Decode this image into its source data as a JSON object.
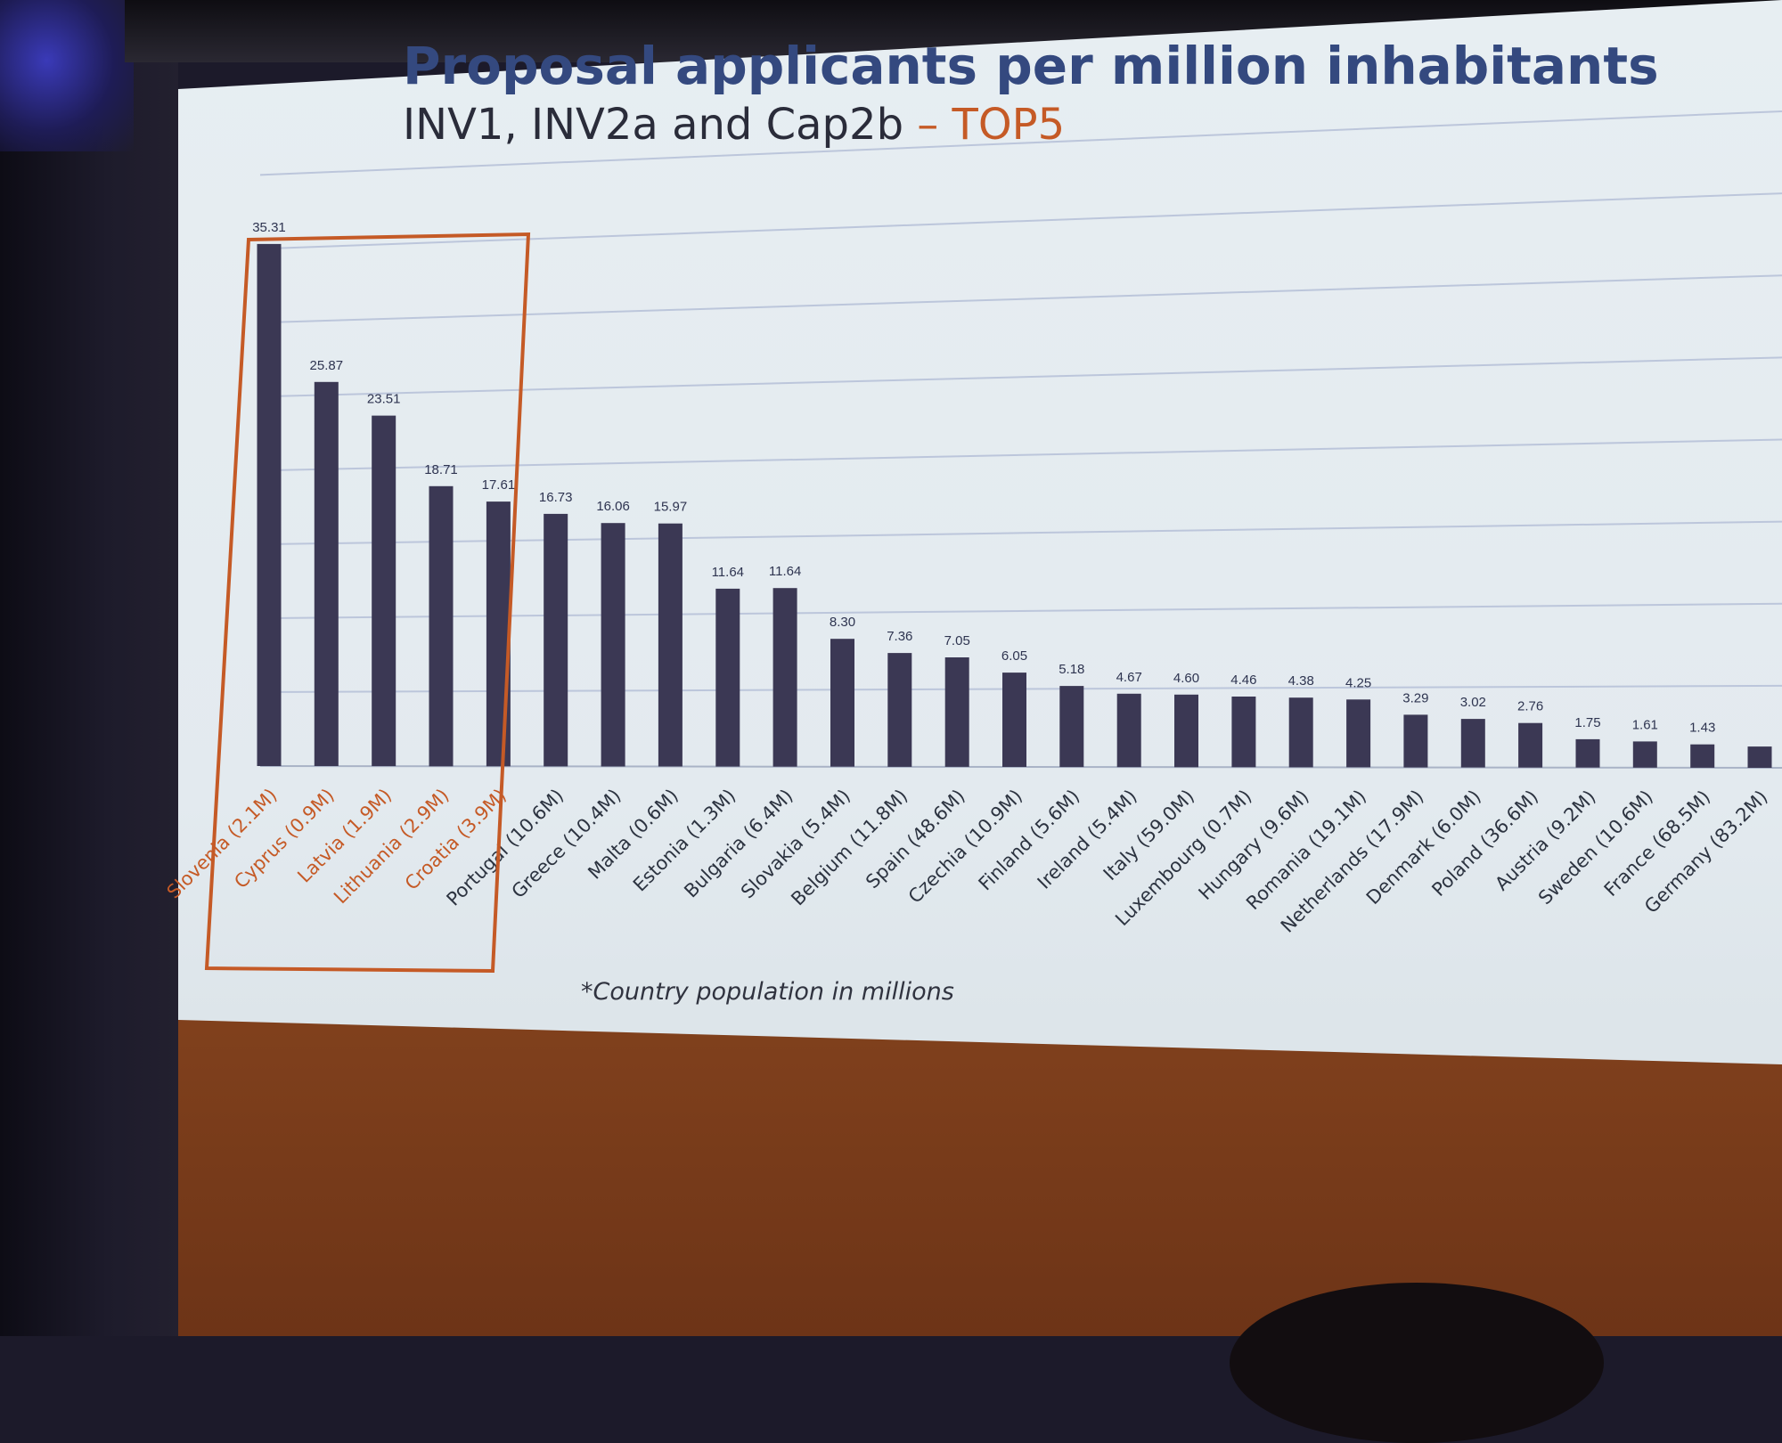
{
  "slide": {
    "title": "Proposal applicants per million inhabitants",
    "subtitle": "INV1, INV2a and Cap2b ",
    "subtitle_accent": "– TOP5",
    "footnote": "*Country population in millions"
  },
  "colors": {
    "bar": "#3b3854",
    "title": "#34497f",
    "accent": "#c55a26",
    "highlight_box": "#c55a26",
    "gridline": "#bcc6db"
  },
  "chart_data": {
    "type": "bar",
    "categories": [
      "Slovenia (2.1M)",
      "Cyprus (0.9M)",
      "Latvia (1.9M)",
      "Lithuania (2.9M)",
      "Croatia (3.9M)",
      "Portugal (10.6M)",
      "Greece (10.4M)",
      "Malta (0.6M)",
      "Estonia (1.3M)",
      "Bulgaria (6.4M)",
      "Slovakia (5.4M)",
      "Belgium (11.8M)",
      "Spain (48.6M)",
      "Czechia (10.9M)",
      "Finland (5.6M)",
      "Ireland (5.4M)",
      "Italy (59.0M)",
      "Luxembourg (0.7M)",
      "Hungary (9.6M)",
      "Romania (19.1M)",
      "Netherlands (17.9M)",
      "Denmark (6.0M)",
      "Poland (36.6M)",
      "Austria (9.2M)",
      "Sweden (10.6M)",
      "France (68.5M)",
      "Germany (83.2M)"
    ],
    "values": [
      35.31,
      25.87,
      23.51,
      18.71,
      17.61,
      16.73,
      16.06,
      15.97,
      11.64,
      11.64,
      8.3,
      7.36,
      7.05,
      6.05,
      5.18,
      4.67,
      4.6,
      4.46,
      4.38,
      4.25,
      3.29,
      3.02,
      2.76,
      1.75,
      1.61,
      1.43,
      1.3
    ],
    "value_labels": [
      "35.31",
      "25.87",
      "23.51",
      "18.71",
      "17.61",
      "16.73",
      "16.06",
      "15.97",
      "11.64",
      "11.64",
      "8.30",
      "7.36",
      "7.05",
      "6.05",
      "5.18",
      "4.67",
      "4.60",
      "4.46",
      "4.38",
      "4.25",
      "3.29",
      "3.02",
      "2.76",
      "1.75",
      "1.61",
      "1.43",
      ""
    ],
    "ylim": [
      0,
      40
    ],
    "grid": true,
    "highlighted_count": 5,
    "xlabel": "",
    "ylabel": ""
  }
}
